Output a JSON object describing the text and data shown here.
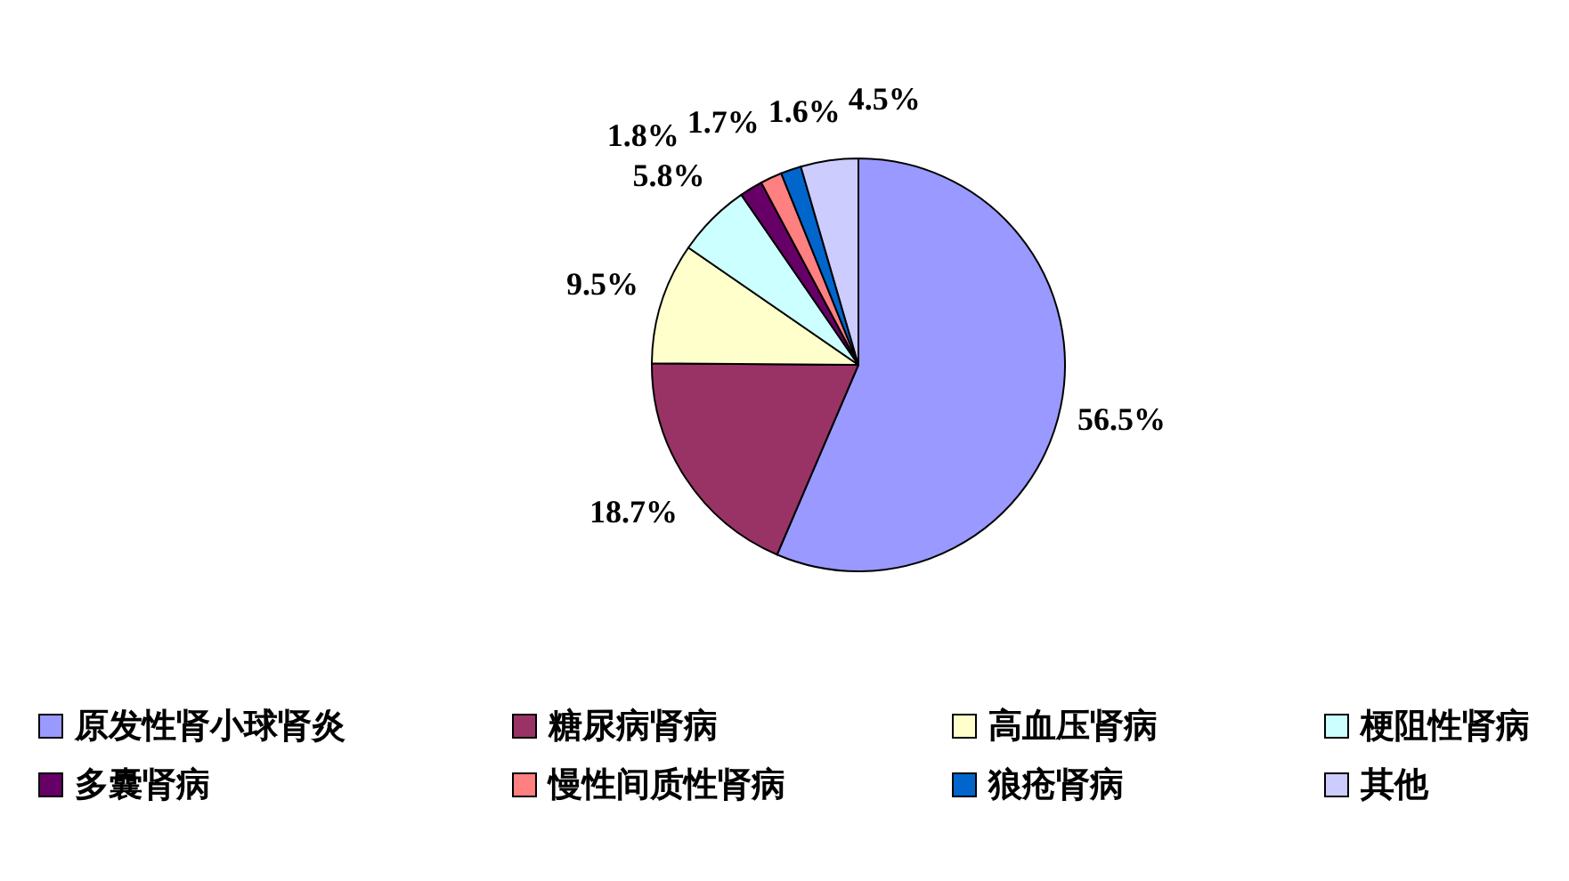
{
  "chart_data": {
    "type": "pie",
    "legend": "bottom",
    "categories": [
      "原发性肾小球肾炎",
      "糖尿病肾病",
      "高血压肾病",
      "梗阻性肾病",
      "多囊肾病",
      "慢性间质性肾病",
      "狼疮肾病",
      "其他"
    ],
    "values": [
      56.5,
      18.7,
      9.5,
      5.8,
      1.8,
      1.7,
      1.6,
      4.5
    ],
    "value_labels": [
      "56.5%",
      "18.7%",
      "9.5%",
      "5.8%",
      "1.8%",
      "1.7%",
      "1.6%",
      "4.5%"
    ],
    "colors": [
      "#9999ff",
      "#993366",
      "#ffffcc",
      "#ccffff",
      "#660066",
      "#ff8080",
      "#0066cc",
      "#ccccff"
    ]
  }
}
